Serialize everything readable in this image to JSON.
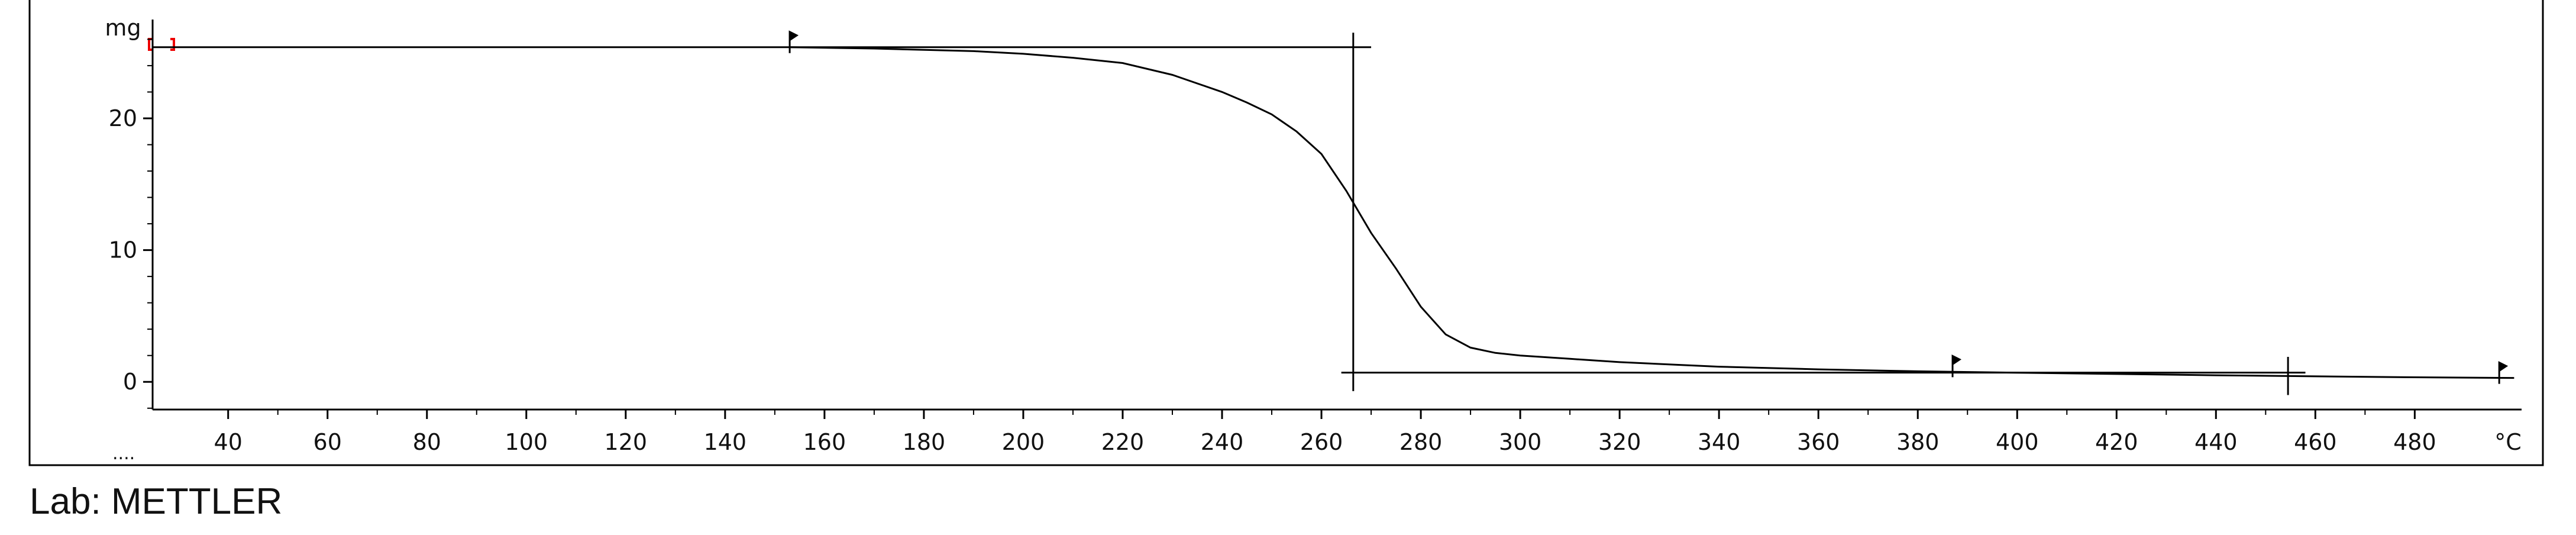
{
  "chart_data": {
    "type": "line",
    "x_label": "°C",
    "y_label": "mg",
    "footer": "Lab: METTLER",
    "corner_note": "....",
    "xlim": [
      24.8,
      501.5
    ],
    "ylim": [
      -2.1,
      27.5
    ],
    "xticks": [
      40,
      60,
      80,
      100,
      120,
      140,
      160,
      180,
      200,
      220,
      240,
      260,
      280,
      300,
      320,
      340,
      360,
      380,
      400,
      420,
      440,
      460,
      480
    ],
    "yticks": [
      0,
      10,
      20
    ],
    "series": [
      {
        "color": "#000000",
        "x": [
          153,
          170,
          190,
          200,
          210,
          220,
          230,
          240,
          245,
          250,
          255,
          260,
          265,
          270,
          275,
          280,
          285,
          290,
          295,
          300,
          310,
          320,
          340,
          360,
          380,
          400,
          420,
          440,
          460,
          480,
          500
        ],
        "values": [
          25.4,
          25.3,
          25.1,
          24.9,
          24.6,
          24.2,
          23.3,
          22.0,
          21.2,
          20.3,
          19.0,
          17.3,
          14.5,
          11.3,
          8.6,
          5.7,
          3.6,
          2.6,
          2.2,
          2.0,
          1.75,
          1.5,
          1.15,
          0.95,
          0.8,
          0.7,
          0.6,
          0.5,
          0.42,
          0.35,
          0.3
        ]
      }
    ],
    "reference_lines": [
      {
        "axis": "y",
        "value": 25.4,
        "from": 24.8,
        "to": 270
      },
      {
        "axis": "y",
        "value": 0.7,
        "from": 264,
        "to": 458
      },
      {
        "axis": "x",
        "value": 266.4,
        "from": -0.7,
        "to": 26.5
      },
      {
        "axis": "x",
        "value": 454.5,
        "from": -1.0,
        "to": 1.9
      }
    ],
    "flags": [
      153,
      387,
      497
    ]
  }
}
